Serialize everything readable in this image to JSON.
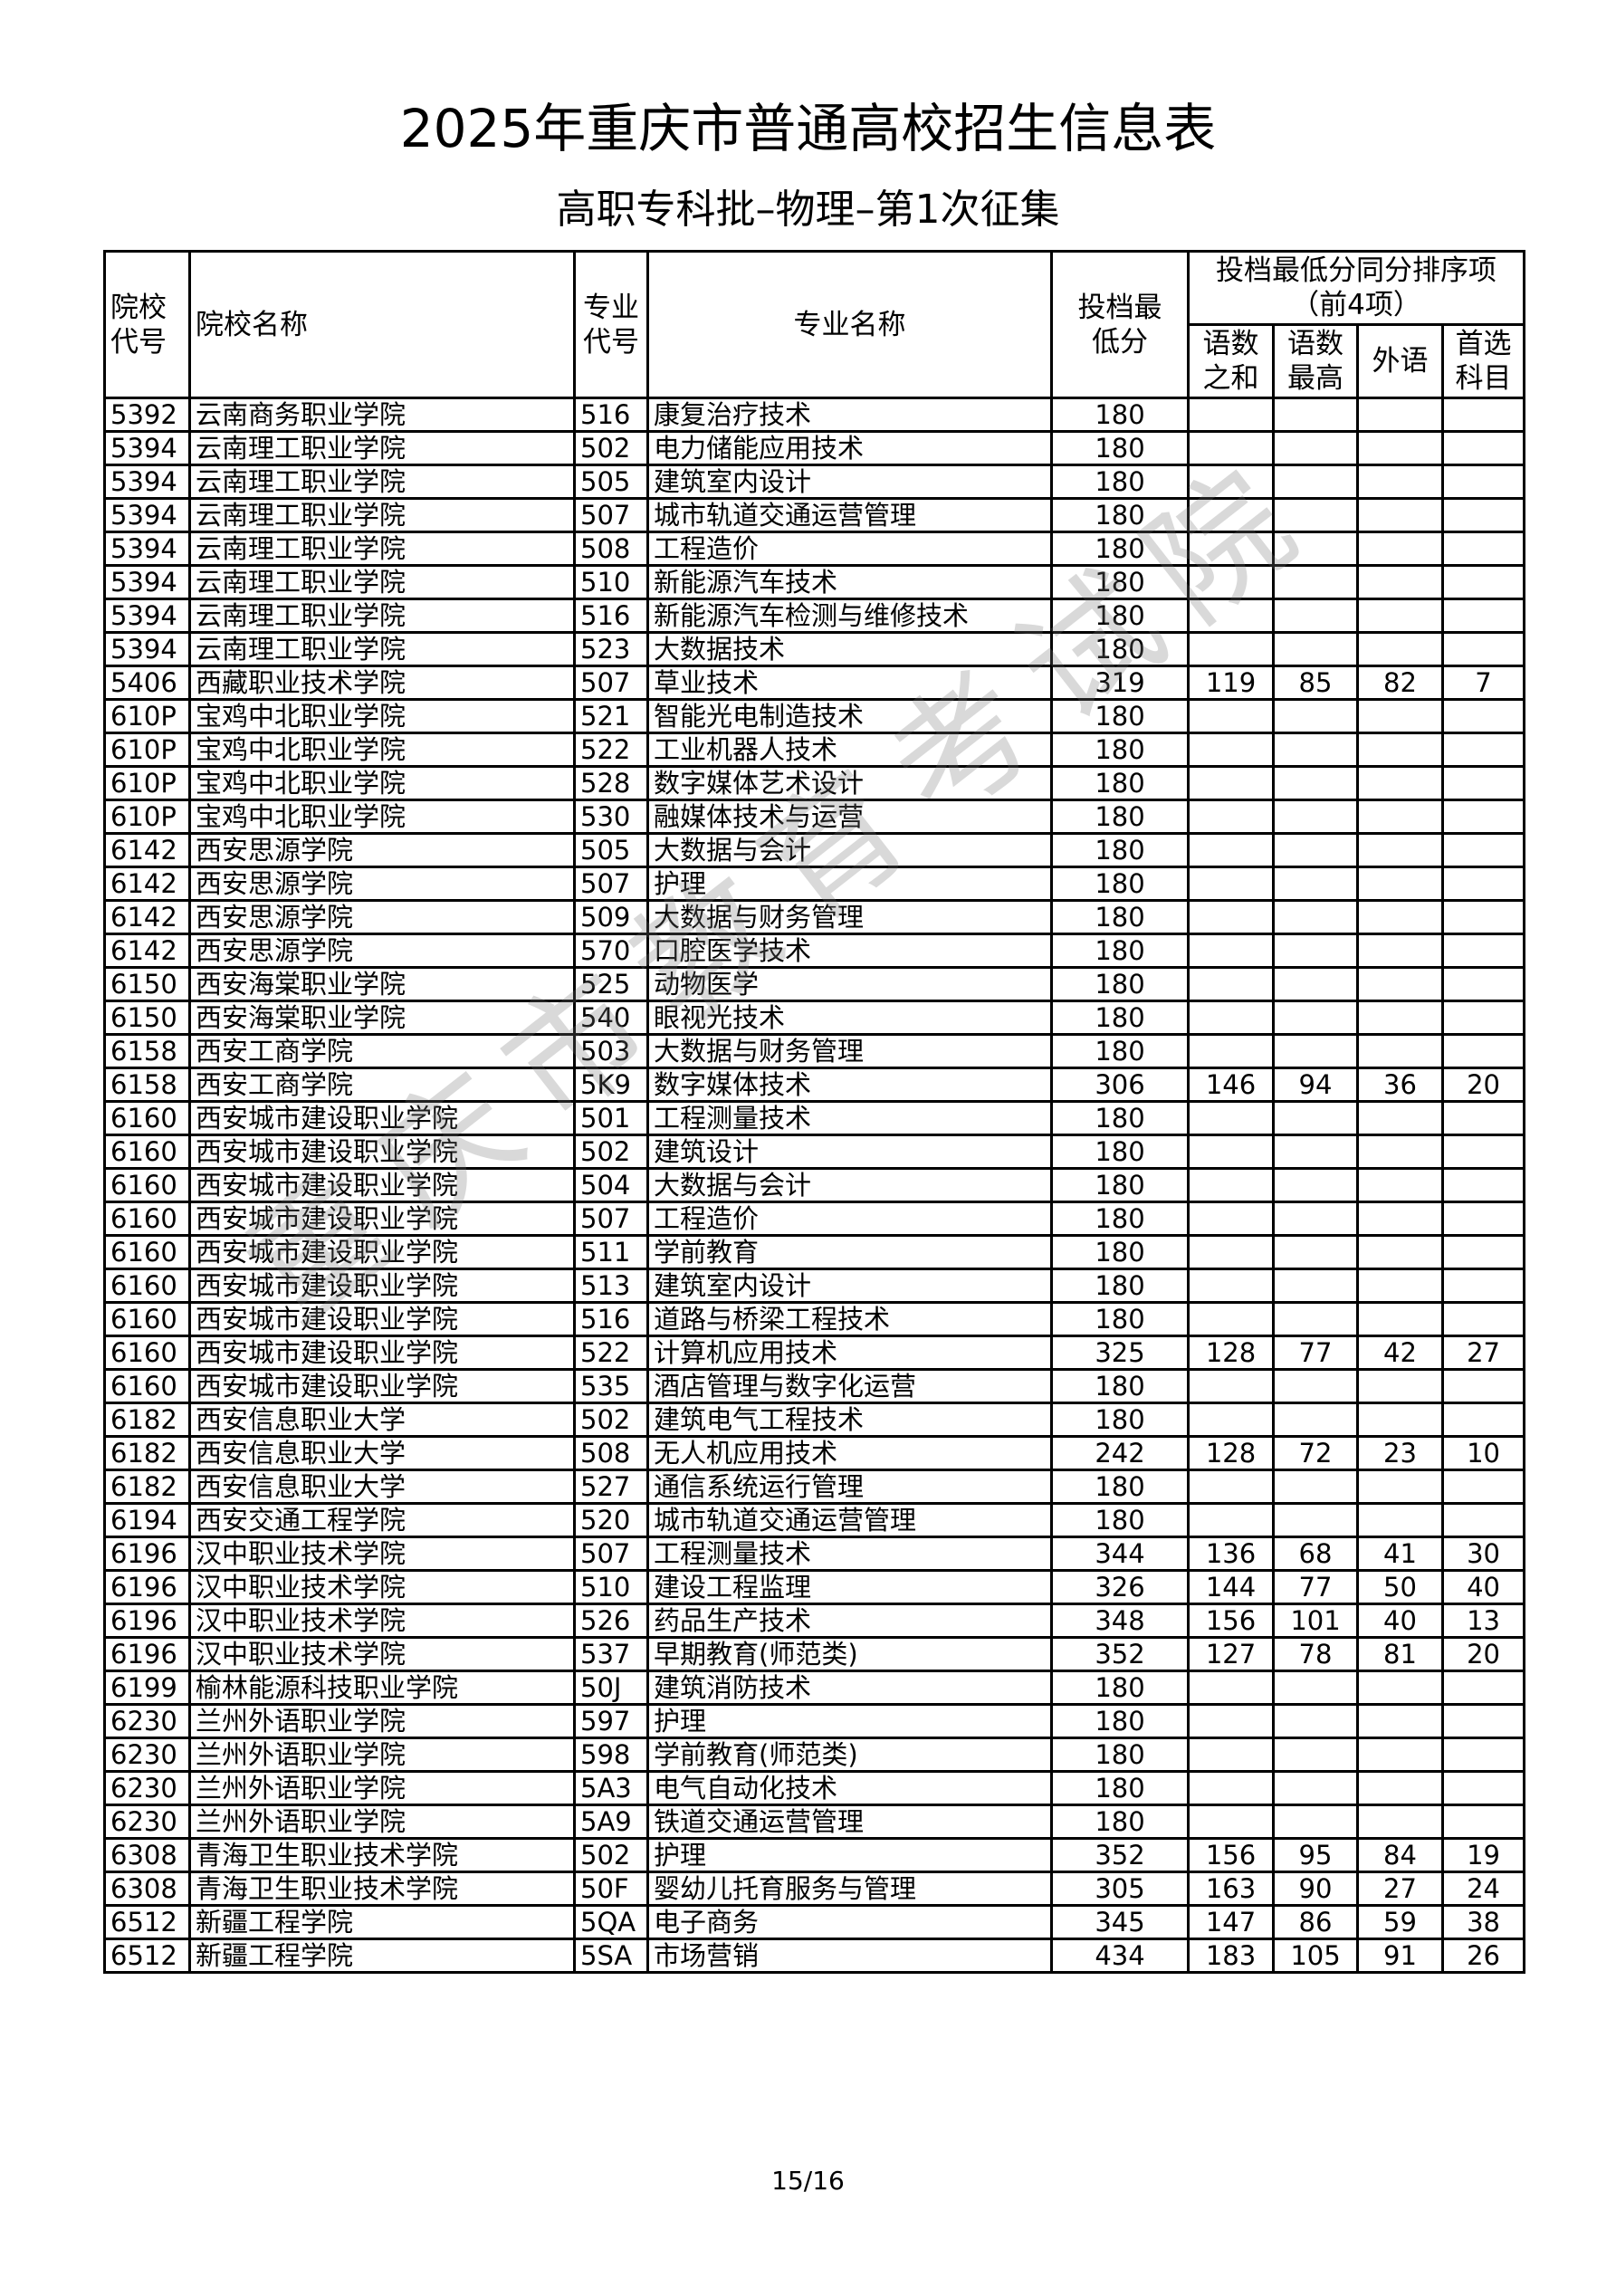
{
  "title": "2025年重庆市普通高校招生信息表",
  "subtitle": "高职专科批–物理–第1次征集",
  "watermark": "重庆市教育考试院",
  "page_number": "15/16",
  "headers": {
    "school_code": "院校代号",
    "school_name": "院校名称",
    "major_code": "专业代号",
    "major_name": "专业名称",
    "min_score": "投档最低分",
    "tiebreak_group": "投档最低分同分排序项（前4项）",
    "sum_cn_math": "语数之和",
    "max_cn_math": "语数最高",
    "foreign_lang": "外语",
    "first_subject": "首选科目"
  },
  "rows": [
    [
      "5392",
      "云南商务职业学院",
      "516",
      "康复治疗技术",
      "180",
      "",
      "",
      "",
      ""
    ],
    [
      "5394",
      "云南理工职业学院",
      "502",
      "电力储能应用技术",
      "180",
      "",
      "",
      "",
      ""
    ],
    [
      "5394",
      "云南理工职业学院",
      "505",
      "建筑室内设计",
      "180",
      "",
      "",
      "",
      ""
    ],
    [
      "5394",
      "云南理工职业学院",
      "507",
      "城市轨道交通运营管理",
      "180",
      "",
      "",
      "",
      ""
    ],
    [
      "5394",
      "云南理工职业学院",
      "508",
      "工程造价",
      "180",
      "",
      "",
      "",
      ""
    ],
    [
      "5394",
      "云南理工职业学院",
      "510",
      "新能源汽车技术",
      "180",
      "",
      "",
      "",
      ""
    ],
    [
      "5394",
      "云南理工职业学院",
      "516",
      "新能源汽车检测与维修技术",
      "180",
      "",
      "",
      "",
      ""
    ],
    [
      "5394",
      "云南理工职业学院",
      "523",
      "大数据技术",
      "180",
      "",
      "",
      "",
      ""
    ],
    [
      "5406",
      "西藏职业技术学院",
      "507",
      "草业技术",
      "319",
      "119",
      "85",
      "82",
      "7"
    ],
    [
      "610P",
      "宝鸡中北职业学院",
      "521",
      "智能光电制造技术",
      "180",
      "",
      "",
      "",
      ""
    ],
    [
      "610P",
      "宝鸡中北职业学院",
      "522",
      "工业机器人技术",
      "180",
      "",
      "",
      "",
      ""
    ],
    [
      "610P",
      "宝鸡中北职业学院",
      "528",
      "数字媒体艺术设计",
      "180",
      "",
      "",
      "",
      ""
    ],
    [
      "610P",
      "宝鸡中北职业学院",
      "530",
      "融媒体技术与运营",
      "180",
      "",
      "",
      "",
      ""
    ],
    [
      "6142",
      "西安思源学院",
      "505",
      "大数据与会计",
      "180",
      "",
      "",
      "",
      ""
    ],
    [
      "6142",
      "西安思源学院",
      "507",
      "护理",
      "180",
      "",
      "",
      "",
      ""
    ],
    [
      "6142",
      "西安思源学院",
      "509",
      "大数据与财务管理",
      "180",
      "",
      "",
      "",
      ""
    ],
    [
      "6142",
      "西安思源学院",
      "570",
      "口腔医学技术",
      "180",
      "",
      "",
      "",
      ""
    ],
    [
      "6150",
      "西安海棠职业学院",
      "525",
      "动物医学",
      "180",
      "",
      "",
      "",
      ""
    ],
    [
      "6150",
      "西安海棠职业学院",
      "540",
      "眼视光技术",
      "180",
      "",
      "",
      "",
      ""
    ],
    [
      "6158",
      "西安工商学院",
      "503",
      "大数据与财务管理",
      "180",
      "",
      "",
      "",
      ""
    ],
    [
      "6158",
      "西安工商学院",
      "5K9",
      "数字媒体技术",
      "306",
      "146",
      "94",
      "36",
      "20"
    ],
    [
      "6160",
      "西安城市建设职业学院",
      "501",
      "工程测量技术",
      "180",
      "",
      "",
      "",
      ""
    ],
    [
      "6160",
      "西安城市建设职业学院",
      "502",
      "建筑设计",
      "180",
      "",
      "",
      "",
      ""
    ],
    [
      "6160",
      "西安城市建设职业学院",
      "504",
      "大数据与会计",
      "180",
      "",
      "",
      "",
      ""
    ],
    [
      "6160",
      "西安城市建设职业学院",
      "507",
      "工程造价",
      "180",
      "",
      "",
      "",
      ""
    ],
    [
      "6160",
      "西安城市建设职业学院",
      "511",
      "学前教育",
      "180",
      "",
      "",
      "",
      ""
    ],
    [
      "6160",
      "西安城市建设职业学院",
      "513",
      "建筑室内设计",
      "180",
      "",
      "",
      "",
      ""
    ],
    [
      "6160",
      "西安城市建设职业学院",
      "516",
      "道路与桥梁工程技术",
      "180",
      "",
      "",
      "",
      ""
    ],
    [
      "6160",
      "西安城市建设职业学院",
      "522",
      "计算机应用技术",
      "325",
      "128",
      "77",
      "42",
      "27"
    ],
    [
      "6160",
      "西安城市建设职业学院",
      "535",
      "酒店管理与数字化运营",
      "180",
      "",
      "",
      "",
      ""
    ],
    [
      "6182",
      "西安信息职业大学",
      "502",
      "建筑电气工程技术",
      "180",
      "",
      "",
      "",
      ""
    ],
    [
      "6182",
      "西安信息职业大学",
      "508",
      "无人机应用技术",
      "242",
      "128",
      "72",
      "23",
      "10"
    ],
    [
      "6182",
      "西安信息职业大学",
      "527",
      "通信系统运行管理",
      "180",
      "",
      "",
      "",
      ""
    ],
    [
      "6194",
      "西安交通工程学院",
      "520",
      "城市轨道交通运营管理",
      "180",
      "",
      "",
      "",
      ""
    ],
    [
      "6196",
      "汉中职业技术学院",
      "507",
      "工程测量技术",
      "344",
      "136",
      "68",
      "41",
      "30"
    ],
    [
      "6196",
      "汉中职业技术学院",
      "510",
      "建设工程监理",
      "326",
      "144",
      "77",
      "50",
      "40"
    ],
    [
      "6196",
      "汉中职业技术学院",
      "526",
      "药品生产技术",
      "348",
      "156",
      "101",
      "40",
      "13"
    ],
    [
      "6196",
      "汉中职业技术学院",
      "537",
      "早期教育(师范类)",
      "352",
      "127",
      "78",
      "81",
      "20"
    ],
    [
      "6199",
      "榆林能源科技职业学院",
      "50J",
      "建筑消防技术",
      "180",
      "",
      "",
      "",
      ""
    ],
    [
      "6230",
      "兰州外语职业学院",
      "597",
      "护理",
      "180",
      "",
      "",
      "",
      ""
    ],
    [
      "6230",
      "兰州外语职业学院",
      "598",
      "学前教育(师范类)",
      "180",
      "",
      "",
      "",
      ""
    ],
    [
      "6230",
      "兰州外语职业学院",
      "5A3",
      "电气自动化技术",
      "180",
      "",
      "",
      "",
      ""
    ],
    [
      "6230",
      "兰州外语职业学院",
      "5A9",
      "铁道交通运营管理",
      "180",
      "",
      "",
      "",
      ""
    ],
    [
      "6308",
      "青海卫生职业技术学院",
      "502",
      "护理",
      "352",
      "156",
      "95",
      "84",
      "19"
    ],
    [
      "6308",
      "青海卫生职业技术学院",
      "50F",
      "婴幼儿托育服务与管理",
      "305",
      "163",
      "90",
      "27",
      "24"
    ],
    [
      "6512",
      "新疆工程学院",
      "5QA",
      "电子商务",
      "345",
      "147",
      "86",
      "59",
      "38"
    ],
    [
      "6512",
      "新疆工程学院",
      "5SA",
      "市场营销",
      "434",
      "183",
      "105",
      "91",
      "26"
    ]
  ]
}
